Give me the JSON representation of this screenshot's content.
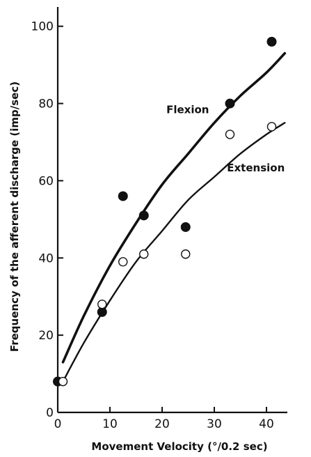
{
  "chart_data": {
    "type": "scatter",
    "xlabel": "Movement Velocity (°/0.2 sec)",
    "ylabel": "Frequency of the afferent discharge (imp/sec)",
    "xlim": [
      0,
      44
    ],
    "ylim": [
      0,
      105
    ],
    "x_ticks": [
      0,
      10,
      20,
      30,
      40
    ],
    "y_ticks": [
      0,
      20,
      40,
      60,
      80,
      100
    ],
    "grid": false,
    "legend": "none",
    "series": [
      {
        "name": "Flexion",
        "marker": "filled-circle",
        "points": [
          {
            "x": 0,
            "y": 8
          },
          {
            "x": 8.5,
            "y": 26
          },
          {
            "x": 12.5,
            "y": 56
          },
          {
            "x": 16.5,
            "y": 51
          },
          {
            "x": 24.5,
            "y": 48
          },
          {
            "x": 33,
            "y": 80
          },
          {
            "x": 41,
            "y": 96
          }
        ],
        "fit_curve": [
          {
            "x": 1,
            "y": 13
          },
          {
            "x": 5,
            "y": 25
          },
          {
            "x": 10,
            "y": 38
          },
          {
            "x": 15,
            "y": 49
          },
          {
            "x": 20,
            "y": 59
          },
          {
            "x": 25,
            "y": 67
          },
          {
            "x": 30,
            "y": 75
          },
          {
            "x": 35,
            "y": 82
          },
          {
            "x": 40,
            "y": 88
          },
          {
            "x": 43.5,
            "y": 93
          }
        ]
      },
      {
        "name": "Extension",
        "marker": "open-circle",
        "points": [
          {
            "x": 1,
            "y": 8
          },
          {
            "x": 8.5,
            "y": 28
          },
          {
            "x": 12.5,
            "y": 39
          },
          {
            "x": 16.5,
            "y": 41
          },
          {
            "x": 24.5,
            "y": 41
          },
          {
            "x": 33,
            "y": 72
          },
          {
            "x": 41,
            "y": 74
          }
        ],
        "fit_curve": [
          {
            "x": 1,
            "y": 8
          },
          {
            "x": 5,
            "y": 18
          },
          {
            "x": 10,
            "y": 29
          },
          {
            "x": 15,
            "y": 39
          },
          {
            "x": 20,
            "y": 47
          },
          {
            "x": 25,
            "y": 55
          },
          {
            "x": 30,
            "y": 61
          },
          {
            "x": 35,
            "y": 67
          },
          {
            "x": 40,
            "y": 72
          },
          {
            "x": 43.5,
            "y": 75
          }
        ]
      }
    ],
    "annotations": [
      "Flexion",
      "Extension"
    ]
  }
}
